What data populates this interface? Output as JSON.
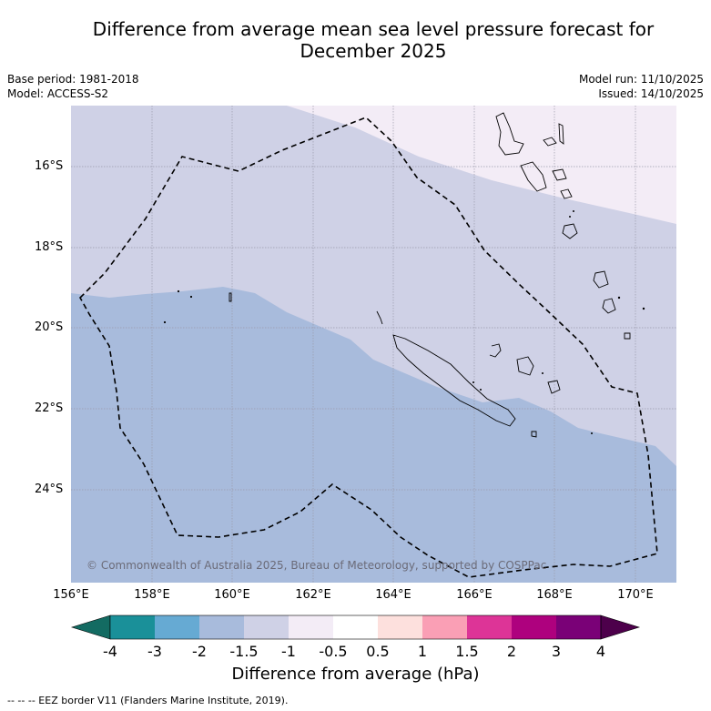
{
  "title": {
    "line1": "Difference from average mean sea level pressure forecast for",
    "line2": "December 2025"
  },
  "meta": {
    "base_period": "Base period: 1981-2018",
    "model": "Model: ACCESS-S2",
    "model_run": "Model run: 11/10/2025",
    "issued": "Issued: 14/10/2025"
  },
  "map": {
    "region": "New Caledonia / Vanuatu",
    "lat_labels": [
      "16°S",
      "18°S",
      "20°S",
      "22°S",
      "24°S"
    ],
    "lon_labels": [
      "156°E",
      "158°E",
      "160°E",
      "162°E",
      "164°E",
      "166°E",
      "168°E",
      "170°E"
    ],
    "copyright": "© Commonwealth of Australia 2025, Bureau of Meteorology, supported by COSPPac",
    "colors": {
      "band_minus2": "#a8bbdc",
      "band_minus1_5": "#cfd1e6",
      "band_minus1": "#f3ecf6",
      "border": "#000000",
      "grid": "#9a9aaa"
    }
  },
  "colorbar": {
    "label": "Difference from average (hPa)",
    "ticks": [
      "-4",
      "-3",
      "-2",
      "-1.5",
      "-1",
      "-0.5",
      "0.5",
      "1",
      "1.5",
      "2",
      "3",
      "4"
    ],
    "colors": [
      "#136b62",
      "#1a9099",
      "#66aad3",
      "#a8bbdc",
      "#cfd1e6",
      "#f3ecf6",
      "#ffffff",
      "#fde0dd",
      "#fa9fb5",
      "#dd3497",
      "#ae017e",
      "#7a0177",
      "#4d004b"
    ]
  },
  "footnote": "--  --  -- EEZ border V11 (Flanders Marine Institute, 2019)."
}
